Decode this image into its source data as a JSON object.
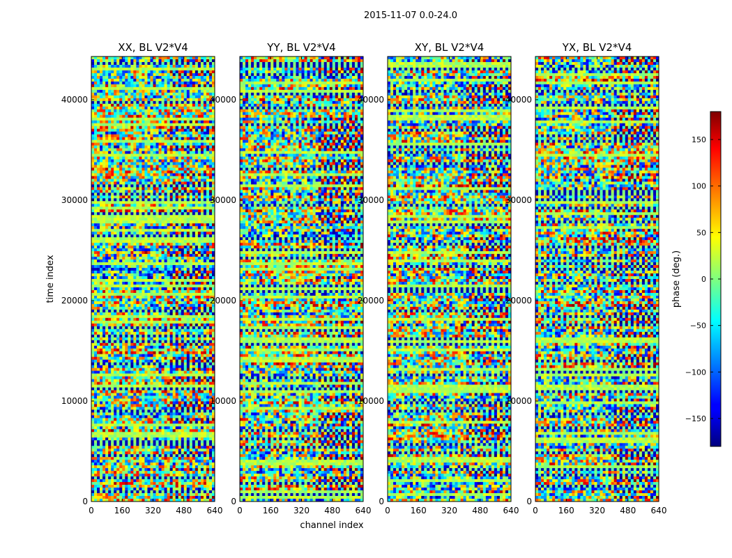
{
  "figure": {
    "suptitle": "2015-11-07 0.0-24.0",
    "shared_ylabel": "time index",
    "shared_xlabel": "channel index"
  },
  "chart_data": {
    "type": "heatmap",
    "colormap": "jet",
    "colorbar": {
      "label": "phase (deg.)",
      "range": [
        -180,
        180
      ],
      "ticks": [
        -150,
        -100,
        -50,
        0,
        50,
        100,
        150
      ],
      "tick_labels": [
        "−150",
        "−100",
        "−50",
        "0",
        "50",
        "100",
        "150"
      ]
    },
    "xlim": [
      0,
      640
    ],
    "ylim": [
      0,
      44300
    ],
    "xticks": [
      0,
      160,
      320,
      480,
      640
    ],
    "yticks": [
      0,
      10000,
      20000,
      30000,
      40000
    ],
    "panels": [
      {
        "title": "XX, BL V2*V4",
        "pol": "XX"
      },
      {
        "title": "YY, BL V2*V4",
        "pol": "YY"
      },
      {
        "title": "XY, BL V2*V4",
        "pol": "XY"
      },
      {
        "title": "YX, BL V2*V4",
        "pol": "YX"
      }
    ]
  }
}
